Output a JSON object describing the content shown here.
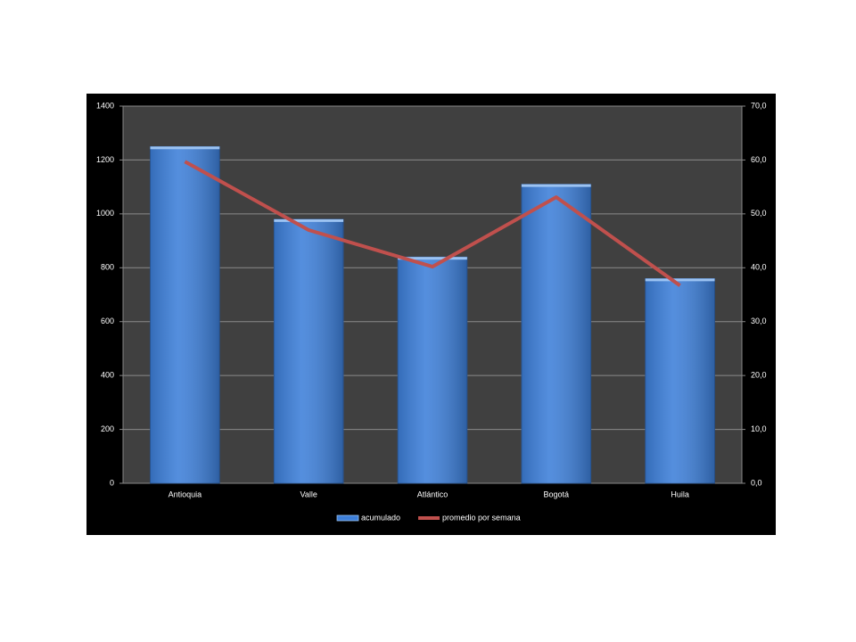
{
  "chart_data": {
    "type": "bar",
    "categories": [
      "Antioquia",
      "Valle",
      "Atlántico",
      "Bogotá",
      "Huila"
    ],
    "series": [
      {
        "name": "acumulado",
        "type": "bar",
        "color": "#3d7fd9",
        "values": [
          1250,
          980,
          840,
          1110,
          760
        ]
      },
      {
        "name": "promedio por semana",
        "type": "line",
        "axis": "y2",
        "color": "#c0504d",
        "values": [
          59.7,
          47.0,
          40.2,
          53.1,
          36.7
        ]
      }
    ],
    "ylim": [
      0,
      1400
    ],
    "yticks": [
      0,
      200,
      400,
      600,
      800,
      1000,
      1200,
      1400
    ],
    "y2lim": [
      0,
      70
    ],
    "y2ticks": [
      {
        "value": 0,
        "label": "0,0"
      },
      {
        "value": 10,
        "label": "10,0"
      },
      {
        "value": 20,
        "label": "20,0"
      },
      {
        "value": 30,
        "label": "30,0"
      },
      {
        "value": 40,
        "label": "40,0"
      },
      {
        "value": 50,
        "label": "50,0"
      },
      {
        "value": 60,
        "label": "60,0"
      },
      {
        "value": 70,
        "label": "70,0"
      }
    ],
    "grid": true,
    "legend": "bottom"
  }
}
